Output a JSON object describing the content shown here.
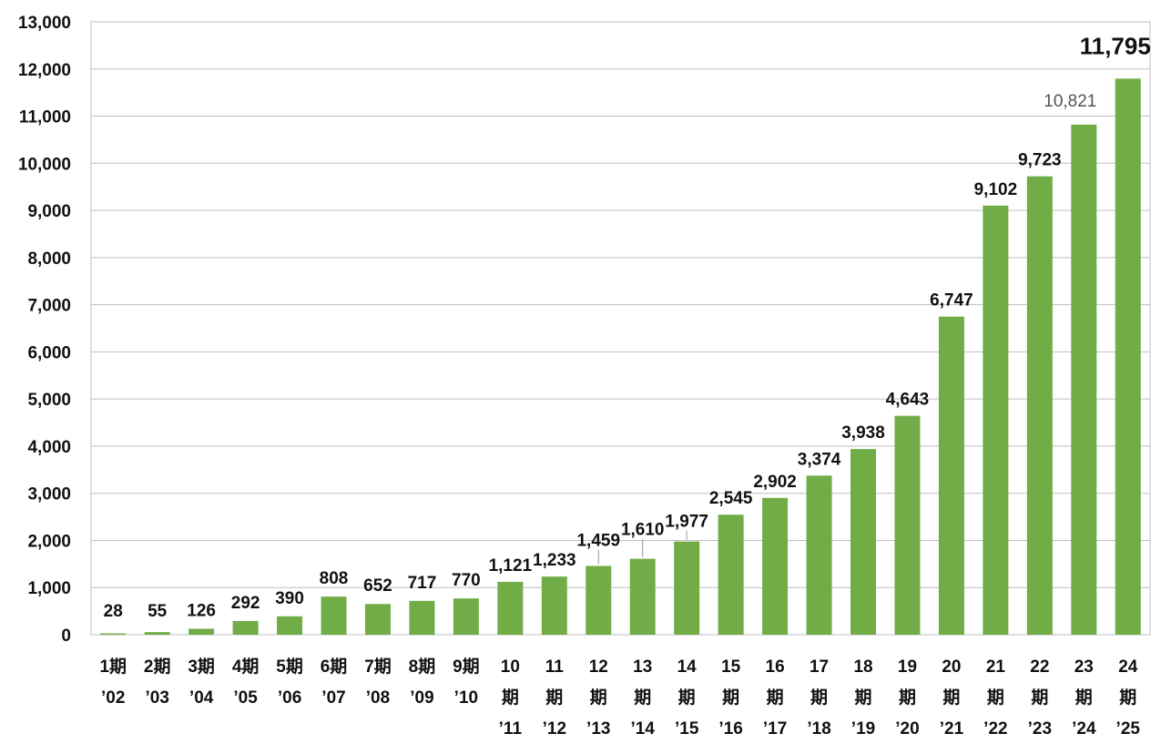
{
  "chart_data": {
    "type": "bar",
    "title": "",
    "xlabel": "",
    "ylabel": "",
    "ylim": [
      0,
      13000
    ],
    "yticks": [
      0,
      1000,
      2000,
      3000,
      4000,
      5000,
      6000,
      7000,
      8000,
      9000,
      10000,
      11000,
      12000,
      13000
    ],
    "ytick_labels": [
      "0",
      "1,000",
      "2,000",
      "3,000",
      "4,000",
      "5,000",
      "6,000",
      "7,000",
      "8,000",
      "9,000",
      "10,000",
      "11,000",
      "12,000",
      "13,000"
    ],
    "grid": true,
    "bar_color": "#70ad47",
    "categories": [
      [
        "1期",
        "’02"
      ],
      [
        "2期",
        "’03"
      ],
      [
        "3期",
        "’04"
      ],
      [
        "4期",
        "’05"
      ],
      [
        "5期",
        "’06"
      ],
      [
        "6期",
        "’07"
      ],
      [
        "7期",
        "’08"
      ],
      [
        "8期",
        "’09"
      ],
      [
        "9期",
        "’10"
      ],
      [
        "10",
        "期",
        "’11"
      ],
      [
        "11",
        "期",
        "’12"
      ],
      [
        "12",
        "期",
        "’13"
      ],
      [
        "13",
        "期",
        "’14"
      ],
      [
        "14",
        "期",
        "’15"
      ],
      [
        "15",
        "期",
        "’16"
      ],
      [
        "16",
        "期",
        "’17"
      ],
      [
        "17",
        "期",
        "’18"
      ],
      [
        "18",
        "期",
        "’19"
      ],
      [
        "19",
        "期",
        "’20"
      ],
      [
        "20",
        "期",
        "’21"
      ],
      [
        "21",
        "期",
        "’22"
      ],
      [
        "22",
        "期",
        "’23"
      ],
      [
        "23",
        "期",
        "’24"
      ],
      [
        "24",
        "期",
        "’25"
      ]
    ],
    "values": [
      28,
      55,
      126,
      292,
      390,
      808,
      652,
      717,
      770,
      1121,
      1233,
      1459,
      1610,
      1977,
      2545,
      2902,
      3374,
      3938,
      4643,
      6747,
      9102,
      9723,
      10821,
      11795
    ],
    "value_labels": [
      "28",
      "55",
      "126",
      "292",
      "390",
      "808",
      "652",
      "717",
      "770",
      "1,121",
      "1,233",
      "1,459",
      "1,610",
      "1,977",
      "2,545",
      "2,902",
      "3,374",
      "3,938",
      "4,643",
      "6,747",
      "9,102",
      "9,723",
      "10,821",
      "11,795"
    ],
    "label_styles": [
      "",
      "",
      "",
      "",
      "",
      "",
      "",
      "",
      "",
      "",
      "",
      "",
      "",
      "",
      "",
      "",
      "",
      "",
      "",
      "",
      "",
      "",
      "light",
      "big"
    ]
  }
}
